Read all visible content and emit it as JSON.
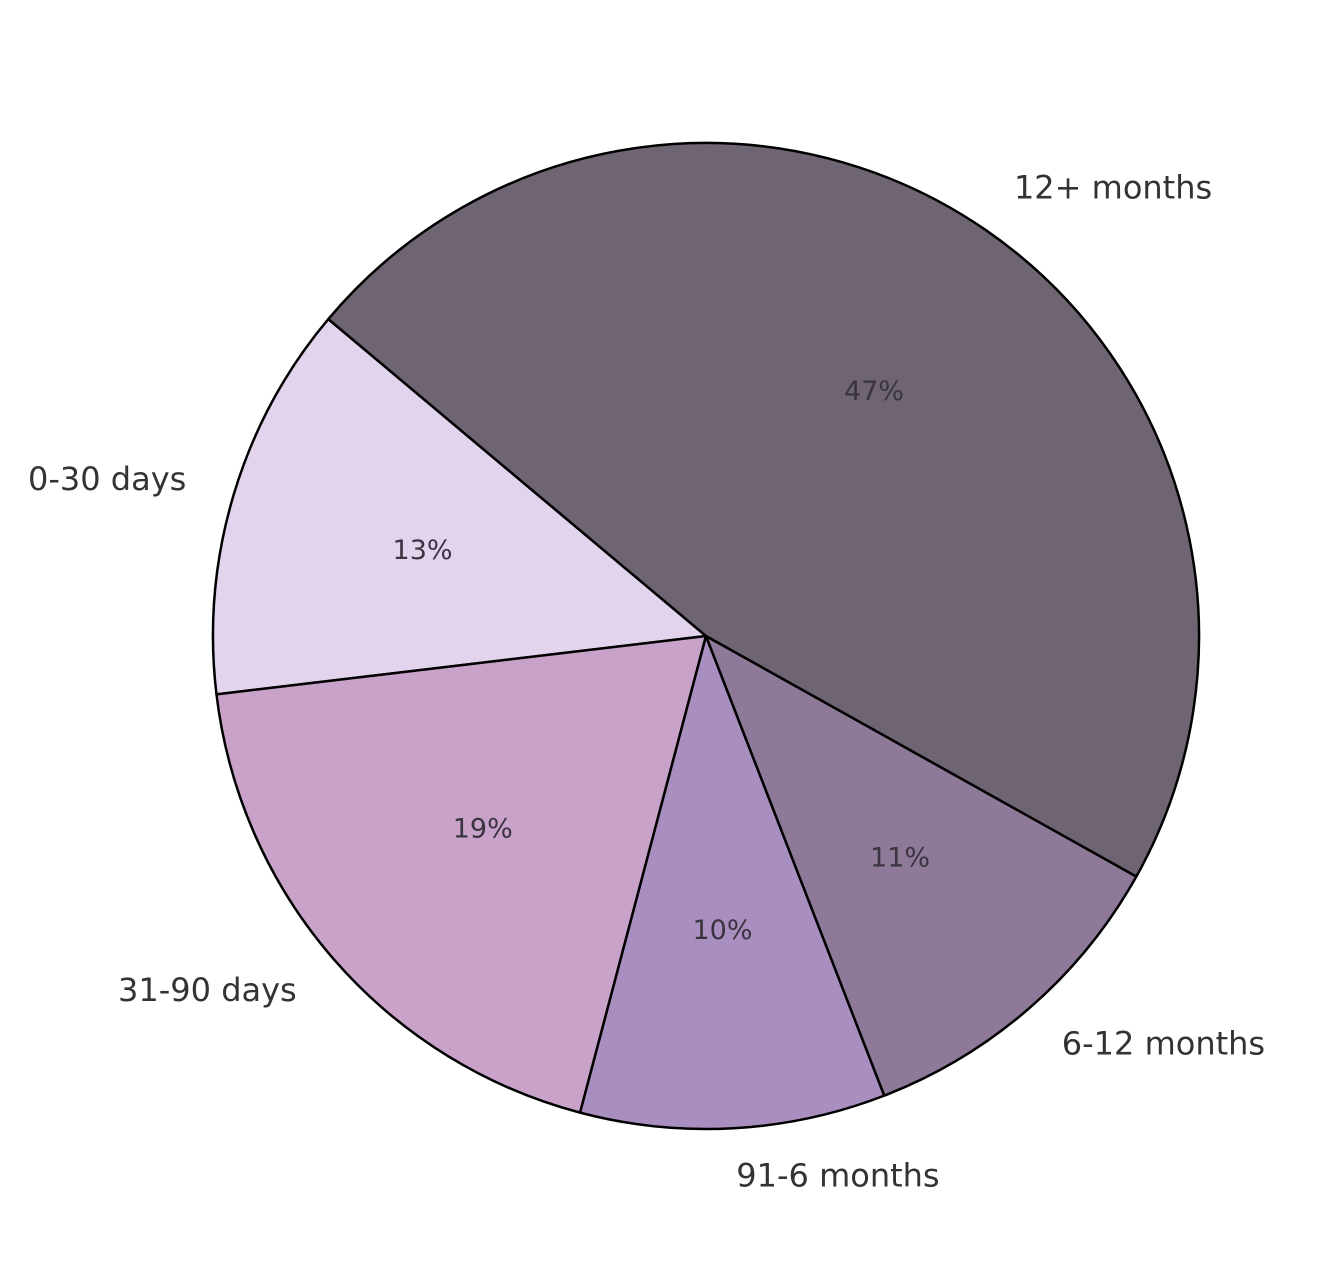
{
  "chart_data": {
    "type": "pie",
    "categories": [
      "0-30 days",
      "31-90 days",
      "91-6 months",
      "6-12 months",
      "12+ months"
    ],
    "values": [
      13,
      19,
      10,
      11,
      47
    ],
    "value_labels": [
      "13%",
      "19%",
      "10%",
      "11%",
      "47%"
    ],
    "colors": [
      "#e3d4ee",
      "#c8a2c9",
      "#a98fbf",
      "#8e7a98",
      "#6f6472"
    ]
  }
}
